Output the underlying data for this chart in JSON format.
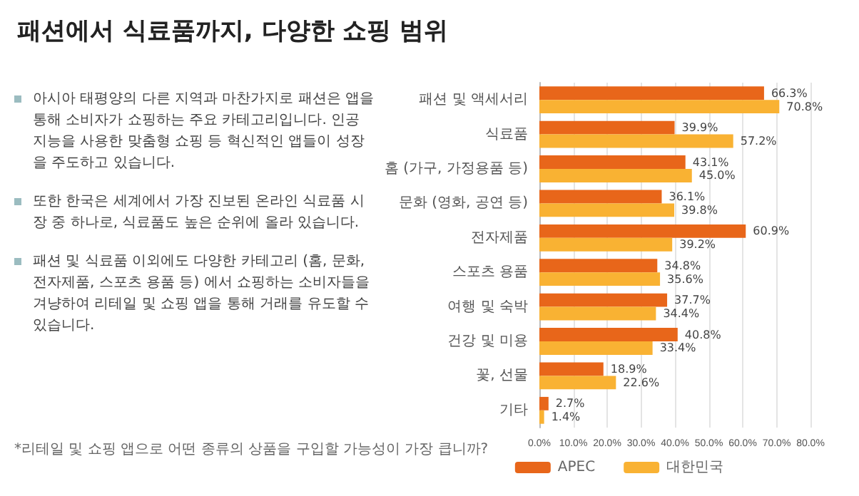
{
  "chart_data": {
    "type": "bar",
    "orientation": "horizontal",
    "title": "패션에서 식료품까지, 다양한 쇼핑 범위",
    "annotations": [
      "아시아 태평양의 다른 지역과 마찬가지로 패션은 앱을 통해 소비자가 쇼핑하는 주요 카테고리입니다. 인공 지능을 사용한 맞춤형 쇼핑 등 혁신적인 앱들이 성장을 주도하고 있습니다.",
      "또한 한국은 세계에서 가장 진보된 온라인 식료품 시장 중 하나로, 식료품도 높은 순위에 올라 있습니다.",
      "패션 및 식료품 이외에도 다양한 카테고리 (홈, 문화, 전자제품, 스포츠 용품 등) 에서 쇼핑하는 소비자들을 겨냥하여 리테일 및 쇼핑 앱을 통해 거래를 유도할 수 있습니다.",
      "*리테일 및 쇼핑 앱으로 어떤 종류의 상품을 구입할 가능성이 가장 큽니까?"
    ],
    "categories": [
      "패션 및 액세서리",
      "식료품",
      "홈 (가구, 가정용품 등)",
      "문화 (영화, 공연 등)",
      "전자제품",
      "스포츠 용품",
      "여행 및 숙박",
      "건강 및 미용",
      "꽃, 선물",
      "기타"
    ],
    "series": [
      {
        "name": "APEC",
        "color": "#e8661a",
        "values": [
          66.3,
          39.9,
          43.1,
          36.1,
          60.9,
          34.8,
          37.7,
          40.8,
          18.9,
          2.7
        ],
        "value_labels": [
          "66.3%",
          "39.9%",
          "43.1%",
          "36.1%",
          "60.9%",
          "34.8%",
          "37.7%",
          "40.8%",
          "18.9%",
          "2.7%"
        ]
      },
      {
        "name": "대한민국",
        "color": "#f9b233",
        "values": [
          70.8,
          57.2,
          45.0,
          39.8,
          39.2,
          35.6,
          34.4,
          33.4,
          22.6,
          1.4
        ],
        "value_labels": [
          "70.8%",
          "57.2%",
          "45.0%",
          "39.8%",
          "39.2%",
          "35.6%",
          "34.4%",
          "33.4%",
          "22.6%",
          "1.4%"
        ]
      }
    ],
    "xlim": [
      0,
      80
    ],
    "xticks": [
      {
        "value": 0,
        "label": "0.0%"
      },
      {
        "value": 10,
        "label": "10.0%"
      },
      {
        "value": 20,
        "label": "20.0%"
      },
      {
        "value": 30,
        "label": "30.0%"
      },
      {
        "value": 40,
        "label": "40.0%"
      },
      {
        "value": 50,
        "label": "50.0%"
      },
      {
        "value": 60,
        "label": "60.0%"
      },
      {
        "value": 70,
        "label": "70.0%"
      },
      {
        "value": 80,
        "label": "80.0%"
      }
    ],
    "grid": "x",
    "legend": "bottom"
  }
}
